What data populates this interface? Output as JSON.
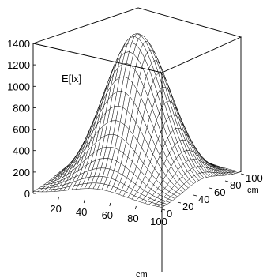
{
  "chart_data": {
    "type": "surface",
    "title": "",
    "z_label": "E[lx]",
    "x_unit": "cm",
    "y_unit": "cm",
    "x_range": [
      0,
      100
    ],
    "y_range": [
      0,
      100
    ],
    "z_range": [
      0,
      1400
    ],
    "x_ticks": [
      "20",
      "40",
      "60",
      "80",
      "100"
    ],
    "y_ticks": [
      "0",
      "20",
      "40",
      "60",
      "80",
      "100"
    ],
    "z_ticks": [
      "0",
      "200",
      "400",
      "600",
      "800",
      "1000",
      "1200",
      "1400"
    ],
    "surface": {
      "peak_value": 1400,
      "peak_at": [
        50,
        50
      ],
      "spread_cm": 22,
      "corner_value": 10,
      "grid_lines": 30
    },
    "grid": false
  }
}
